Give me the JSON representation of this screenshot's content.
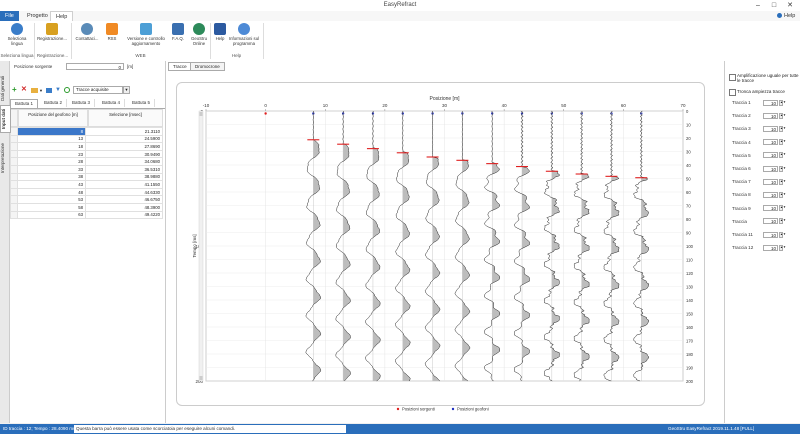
{
  "window": {
    "title": "EasyRefract",
    "minimize": "–",
    "maximize": "□",
    "close": "✕"
  },
  "menu": {
    "tabs": [
      {
        "label": "File"
      },
      {
        "label": "Progetto"
      },
      {
        "label": "Help"
      }
    ],
    "help_right": "Help"
  },
  "ribbon": {
    "buttons": [
      {
        "label": "Seleziona lingua",
        "icon": "language-icon",
        "color": "#3a7dc9"
      },
      {
        "label": "Registrazione...",
        "icon": "lock-icon",
        "color": "#d8a020"
      },
      {
        "label": "Contattaci...",
        "icon": "contact-icon",
        "color": "#5a8bb8"
      },
      {
        "label": "RSS",
        "icon": "rss-icon",
        "color": "#f08a24"
      },
      {
        "label": "Versione e controllo aggiornamento",
        "icon": "update-icon",
        "color": "#4d9fd6"
      },
      {
        "label": "F.A.Q.",
        "icon": "faq-icon",
        "color": "#3a6fb0"
      },
      {
        "label": "GeoStru Online",
        "icon": "globe-icon",
        "color": "#2d8a5a"
      },
      {
        "label": "Help",
        "icon": "book-icon",
        "color": "#2c5aa0"
      },
      {
        "label": "Informazioni sul programma",
        "icon": "info-icon",
        "color": "#4d8ad6"
      }
    ],
    "groups": [
      {
        "label": "Seleziona lingua"
      },
      {
        "label": "Registrazione..."
      },
      {
        "label": "WEB"
      },
      {
        "label": "Help"
      }
    ]
  },
  "left": {
    "vtabs": [
      "Dati generali",
      "Input dati",
      "Interpretazione"
    ],
    "source_label": "Posizione sorgente",
    "source_value": "0",
    "source_unit": "[m]",
    "tracks_select": "Tracce acquisite",
    "subtabs": [
      "Battuta 1",
      "Battuta 2",
      "Battuta 3",
      "Battuta 4",
      "Battuta 5"
    ],
    "table": {
      "col1": "Posizione del geofono [m]",
      "col2": "Selezione [msec]",
      "rows": [
        {
          "pos": "8",
          "sel": "21.3110"
        },
        {
          "pos": "13",
          "sel": "24.5900"
        },
        {
          "pos": "18",
          "sel": "27.8690"
        },
        {
          "pos": "23",
          "sel": "30.9490"
        },
        {
          "pos": "28",
          "sel": "34.0680"
        },
        {
          "pos": "33",
          "sel": "36.5310"
        },
        {
          "pos": "38",
          "sel": "38.9880"
        },
        {
          "pos": "43",
          "sel": "41.1550"
        },
        {
          "pos": "48",
          "sel": "44.6330"
        },
        {
          "pos": "53",
          "sel": "46.6750"
        },
        {
          "pos": "58",
          "sel": "48.3900"
        },
        {
          "pos": "63",
          "sel": "49.4220"
        }
      ]
    }
  },
  "center": {
    "tabs": [
      "Tracce",
      "Dromocrone"
    ],
    "xlabel": "Posizione [m]",
    "ylabel": "Tempo [ms]",
    "legend": [
      "Posizioni sorgenti",
      "Posizioni geofoni"
    ],
    "colors": {
      "source": "#e02020",
      "geophone": "#2030c0",
      "pick": "#e02020"
    }
  },
  "chart_data": {
    "type": "line",
    "title": "",
    "xlabel": "Posizione [m]",
    "ylabel": "Tempo [ms]",
    "xlim": [
      -10,
      70
    ],
    "ylim": [
      200,
      0
    ],
    "x_ticks": [
      -10,
      0,
      10,
      20,
      30,
      40,
      50,
      60,
      70
    ],
    "y_ticks": [
      0,
      100,
      200
    ],
    "y_ticks_right": [
      0,
      10,
      20,
      30,
      40,
      50,
      60,
      70,
      80,
      90,
      100,
      110,
      120,
      130,
      140,
      150,
      160,
      170,
      180,
      190,
      200
    ],
    "source_position": 0,
    "geophones": [
      8,
      13,
      18,
      23,
      28,
      33,
      38,
      43,
      48,
      53,
      58,
      63
    ],
    "picks_ms": [
      21.311,
      24.59,
      27.869,
      30.949,
      34.068,
      36.531,
      38.988,
      41.155,
      44.633,
      46.675,
      48.39,
      49.422
    ],
    "grid": true,
    "legend_position": "bottom"
  },
  "right": {
    "amp_label": "Amplificazione uguale per tutte le tracce",
    "clip_label": "Tronca ampiezza tracce",
    "traces": [
      {
        "label": "Traccia  1",
        "value": "10"
      },
      {
        "label": "Traccia  2",
        "value": "10"
      },
      {
        "label": "Traccia  3",
        "value": "10"
      },
      {
        "label": "Traccia  4",
        "value": "10"
      },
      {
        "label": "Traccia  5",
        "value": "10"
      },
      {
        "label": "Traccia  6",
        "value": "10"
      },
      {
        "label": "Traccia  7",
        "value": "10"
      },
      {
        "label": "Traccia  8",
        "value": "10"
      },
      {
        "label": "Traccia  9",
        "value": "10"
      },
      {
        "label": "Traccia",
        "value": "10"
      },
      {
        "label": "Traccia 11",
        "value": "10"
      },
      {
        "label": "Traccia 12",
        "value": "10"
      }
    ]
  },
  "status": {
    "left": "ID traccia : 12; Tempo : 28.4090 ms",
    "message": "Questa barra può essere usata come scorciatoia per eseguire alcuni comandi.",
    "right": "GeoStru EasyRefract 2019.11.1.48 [FULL]"
  }
}
